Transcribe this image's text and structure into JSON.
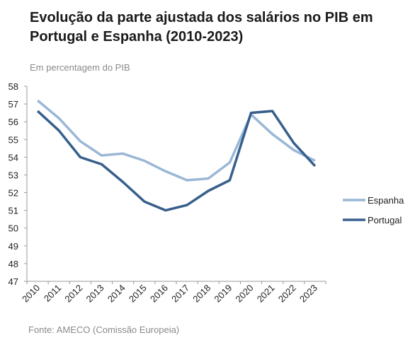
{
  "header": {
    "title": "Evolução da parte ajustada dos salários no PIB em Portugal e Espanha (2010-2023)",
    "subtitle": "Em percentagem do PIB"
  },
  "footer": {
    "source": "Fonte: AMECO (Comissão Europeia)"
  },
  "chart_data": {
    "type": "line",
    "title": "Evolução da parte ajustada dos salários no PIB em Portugal e Espanha (2010-2023)",
    "subtitle": "Em percentagem do PIB",
    "xlabel": "",
    "ylabel": "",
    "ylim": [
      47,
      58
    ],
    "yticks": [
      47,
      48,
      49,
      50,
      51,
      52,
      53,
      54,
      55,
      56,
      57,
      58
    ],
    "categories": [
      "2010",
      "2011",
      "2012",
      "2013",
      "2014",
      "2015",
      "2016",
      "2017",
      "2018",
      "2019",
      "2020",
      "2021",
      "2022",
      "2023"
    ],
    "grid": false,
    "legend_position": "right",
    "series": [
      {
        "name": "Espanha",
        "color": "#9ab7d6",
        "values": [
          57.2,
          56.2,
          54.9,
          54.1,
          54.2,
          53.8,
          53.2,
          52.7,
          52.8,
          53.7,
          56.4,
          55.3,
          54.4,
          53.8
        ]
      },
      {
        "name": "Portugal",
        "color": "#375f8c",
        "values": [
          56.6,
          55.5,
          54.0,
          53.6,
          52.6,
          51.5,
          51.0,
          51.3,
          52.1,
          52.7,
          56.5,
          56.6,
          54.8,
          53.5
        ]
      }
    ]
  }
}
